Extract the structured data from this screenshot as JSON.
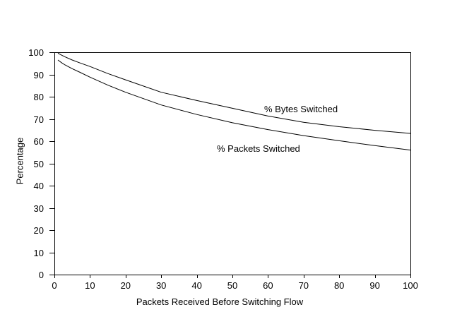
{
  "chart_data": {
    "type": "line",
    "title": "",
    "xlabel": "Packets Received Before Switching Flow",
    "ylabel": "Percentage",
    "xlim": [
      0,
      100
    ],
    "ylim": [
      0,
      100
    ],
    "x_ticks": [
      0,
      10,
      20,
      30,
      40,
      50,
      60,
      70,
      80,
      90,
      100
    ],
    "y_ticks": [
      0,
      10,
      20,
      30,
      40,
      50,
      60,
      70,
      80,
      90,
      100
    ],
    "grid": false,
    "legend_position": "inline-annotations",
    "line_color": "#000000",
    "background_color": "#ffffff",
    "x": [
      1,
      2,
      3,
      5,
      7,
      10,
      15,
      20,
      30,
      40,
      50,
      60,
      70,
      80,
      90,
      100
    ],
    "series": [
      {
        "name": "% Bytes Switched",
        "values": [
          99.6,
          98.7,
          97.9,
          96.5,
          95.3,
          93.6,
          90.4,
          87.6,
          82.0,
          78.3,
          74.8,
          71.3,
          68.5,
          66.5,
          64.9,
          63.5
        ]
      },
      {
        "name": "% Packets Switched",
        "values": [
          96.5,
          95.3,
          94.3,
          92.6,
          91.1,
          88.8,
          85.2,
          82.0,
          76.3,
          72.0,
          68.3,
          65.2,
          62.5,
          60.2,
          58.0,
          56.0
        ]
      }
    ]
  }
}
